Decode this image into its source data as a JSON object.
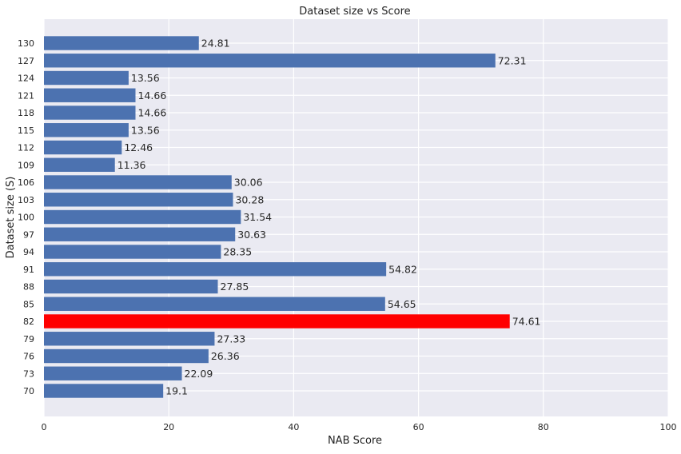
{
  "chart_data": {
    "type": "bar",
    "orientation": "horizontal",
    "title": "Dataset size vs Score",
    "xlabel": "NAB Score",
    "ylabel": "Dataset size (S)",
    "xlim": [
      0,
      100
    ],
    "xticks": [
      0,
      20,
      40,
      60,
      80,
      100
    ],
    "grid": true,
    "categories": [
      "70",
      "73",
      "76",
      "79",
      "82",
      "85",
      "88",
      "91",
      "94",
      "97",
      "100",
      "103",
      "106",
      "109",
      "112",
      "115",
      "118",
      "121",
      "124",
      "127",
      "130"
    ],
    "values": [
      19.1,
      22.09,
      26.36,
      27.33,
      74.61,
      54.65,
      27.85,
      54.82,
      28.35,
      30.63,
      31.54,
      30.28,
      30.06,
      11.36,
      12.46,
      13.56,
      14.66,
      14.66,
      13.56,
      72.31,
      24.81
    ],
    "value_labels": [
      "19.1",
      "22.09",
      "26.36",
      "27.33",
      "74.61",
      "54.65",
      "27.85",
      "54.82",
      "28.35",
      "30.63",
      "31.54",
      "30.28",
      "30.06",
      "11.36",
      "12.46",
      "13.56",
      "14.66",
      "14.66",
      "13.56",
      "72.31",
      "24.81"
    ],
    "highlight": {
      "category": "82",
      "color": "#ff0000"
    },
    "colors": {
      "bar": "#4c72b0",
      "highlight": "#ff0000",
      "background": "#eaeaf2",
      "grid": "#ffffff"
    }
  }
}
